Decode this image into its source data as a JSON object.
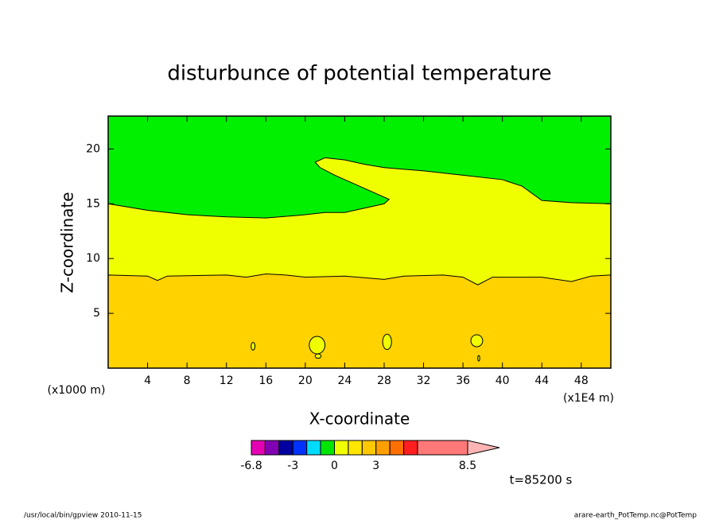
{
  "chart_data": {
    "type": "contour",
    "title": "disturbunce of potential temperature",
    "x_label": "X-coordinate",
    "y_label": "Z-coordinate",
    "x_unit": "(x1E4 m)",
    "y_unit": "(x1000 m)",
    "time_label": "t=85200 s",
    "footer_left": "/usr/local/bin/gpview  2010-11-15",
    "footer_right": "arare-earth_PotTemp.nc@PotTemp",
    "xlim": [
      0,
      51
    ],
    "ylim": [
      0,
      23
    ],
    "xticks": [
      4,
      8,
      12,
      16,
      20,
      24,
      28,
      32,
      36,
      40,
      44,
      48
    ],
    "yticks": [
      5,
      10,
      15,
      20
    ],
    "background_color": "#00f000",
    "regions": [
      {
        "color": "#f0ff00",
        "x": [
          0,
          4,
          8,
          12,
          16,
          20,
          22,
          24,
          26,
          28,
          28.5,
          27,
          25,
          23,
          21.5,
          21,
          22,
          24,
          26,
          28,
          32,
          36,
          40,
          42,
          44,
          47,
          51,
          51,
          0
        ],
        "y": [
          15,
          14.4,
          14,
          13.8,
          13.7,
          14,
          14.2,
          14.2,
          14.6,
          15,
          15.4,
          16,
          16.8,
          17.6,
          18.3,
          18.8,
          19.2,
          19,
          18.6,
          18.3,
          18,
          17.6,
          17.2,
          16.6,
          15.3,
          15.1,
          15,
          0,
          0
        ]
      },
      {
        "color": "#ffd200",
        "x": [
          0,
          4,
          5,
          6,
          12,
          14,
          16,
          18,
          20,
          24,
          28,
          30,
          34,
          36,
          37.5,
          39,
          44,
          47,
          49,
          51,
          51,
          0
        ],
        "y": [
          8.5,
          8.4,
          8,
          8.4,
          8.5,
          8.3,
          8.6,
          8.5,
          8.3,
          8.4,
          8.1,
          8.4,
          8.5,
          8.3,
          7.6,
          8.3,
          8.3,
          7.9,
          8.4,
          8.5,
          0,
          0
        ]
      }
    ],
    "loops": {
      "color": "#f0ff00",
      "x": [
        14.7,
        21.2,
        21.3,
        28.3,
        37.4,
        37.6
      ],
      "y": [
        2,
        2.1,
        1.1,
        2.4,
        2.5,
        0.9
      ],
      "rx": [
        0.2,
        0.8,
        0.3,
        0.45,
        0.6,
        0.1
      ],
      "ry": [
        0.35,
        0.8,
        0.2,
        0.7,
        0.55,
        0.25
      ]
    },
    "colorbar": {
      "levels": [
        -6.8,
        null,
        null,
        -3,
        null,
        null,
        0,
        null,
        null,
        3,
        null,
        null,
        null,
        8.5
      ],
      "colors": [
        "#e600b4",
        "#8200b4",
        "#0000a0",
        "#0032ff",
        "#00dcff",
        "#00e600",
        "#f0ff00",
        "#ffe600",
        "#ffc800",
        "#ffa000",
        "#ff7000",
        "#ff1e1e",
        "#ff7878"
      ],
      "extend_color": "#ffb4b4"
    }
  }
}
